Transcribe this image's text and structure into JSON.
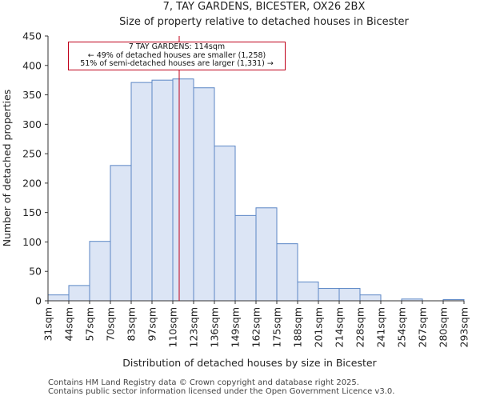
{
  "chart_data": {
    "type": "bar",
    "title": "7, TAY GARDENS, BICESTER, OX26 2BX",
    "subtitle": "Size of property relative to detached houses in Bicester",
    "xlabel": "Distribution of detached houses by size in Bicester",
    "ylabel": "Number of detached properties",
    "ylim": [
      0,
      450
    ],
    "yticks": [
      0,
      50,
      100,
      150,
      200,
      250,
      300,
      350,
      400,
      450
    ],
    "bin_edges": [
      31,
      44,
      57,
      70,
      83,
      97,
      110,
      123,
      136,
      149,
      162,
      175,
      188,
      201,
      214,
      228,
      241,
      254,
      267,
      280,
      293
    ],
    "x_tick_labels": [
      "31sqm",
      "44sqm",
      "57sqm",
      "70sqm",
      "83sqm",
      "97sqm",
      "110sqm",
      "123sqm",
      "136sqm",
      "149sqm",
      "162sqm",
      "175sqm",
      "188sqm",
      "201sqm",
      "214sqm",
      "228sqm",
      "241sqm",
      "254sqm",
      "267sqm",
      "280sqm",
      "293sqm"
    ],
    "values": [
      10,
      26,
      101,
      230,
      371,
      375,
      377,
      362,
      263,
      145,
      158,
      97,
      32,
      21,
      21,
      10,
      0,
      3,
      0,
      2
    ],
    "bar_color": "#dce5f5",
    "bar_edge_color": "#5b86c5",
    "marker_value": 114,
    "marker_color": "#c0001a",
    "grid": false
  },
  "annotation": {
    "line1": "7 TAY GARDENS: 114sqm",
    "line2": "← 49% of detached houses are smaller (1,258)",
    "line3": "51% of semi-detached houses are larger (1,331) →"
  },
  "footer": {
    "line1": "Contains HM Land Registry data © Crown copyright and database right 2025.",
    "line2": "Contains public sector information licensed under the Open Government Licence v3.0."
  }
}
